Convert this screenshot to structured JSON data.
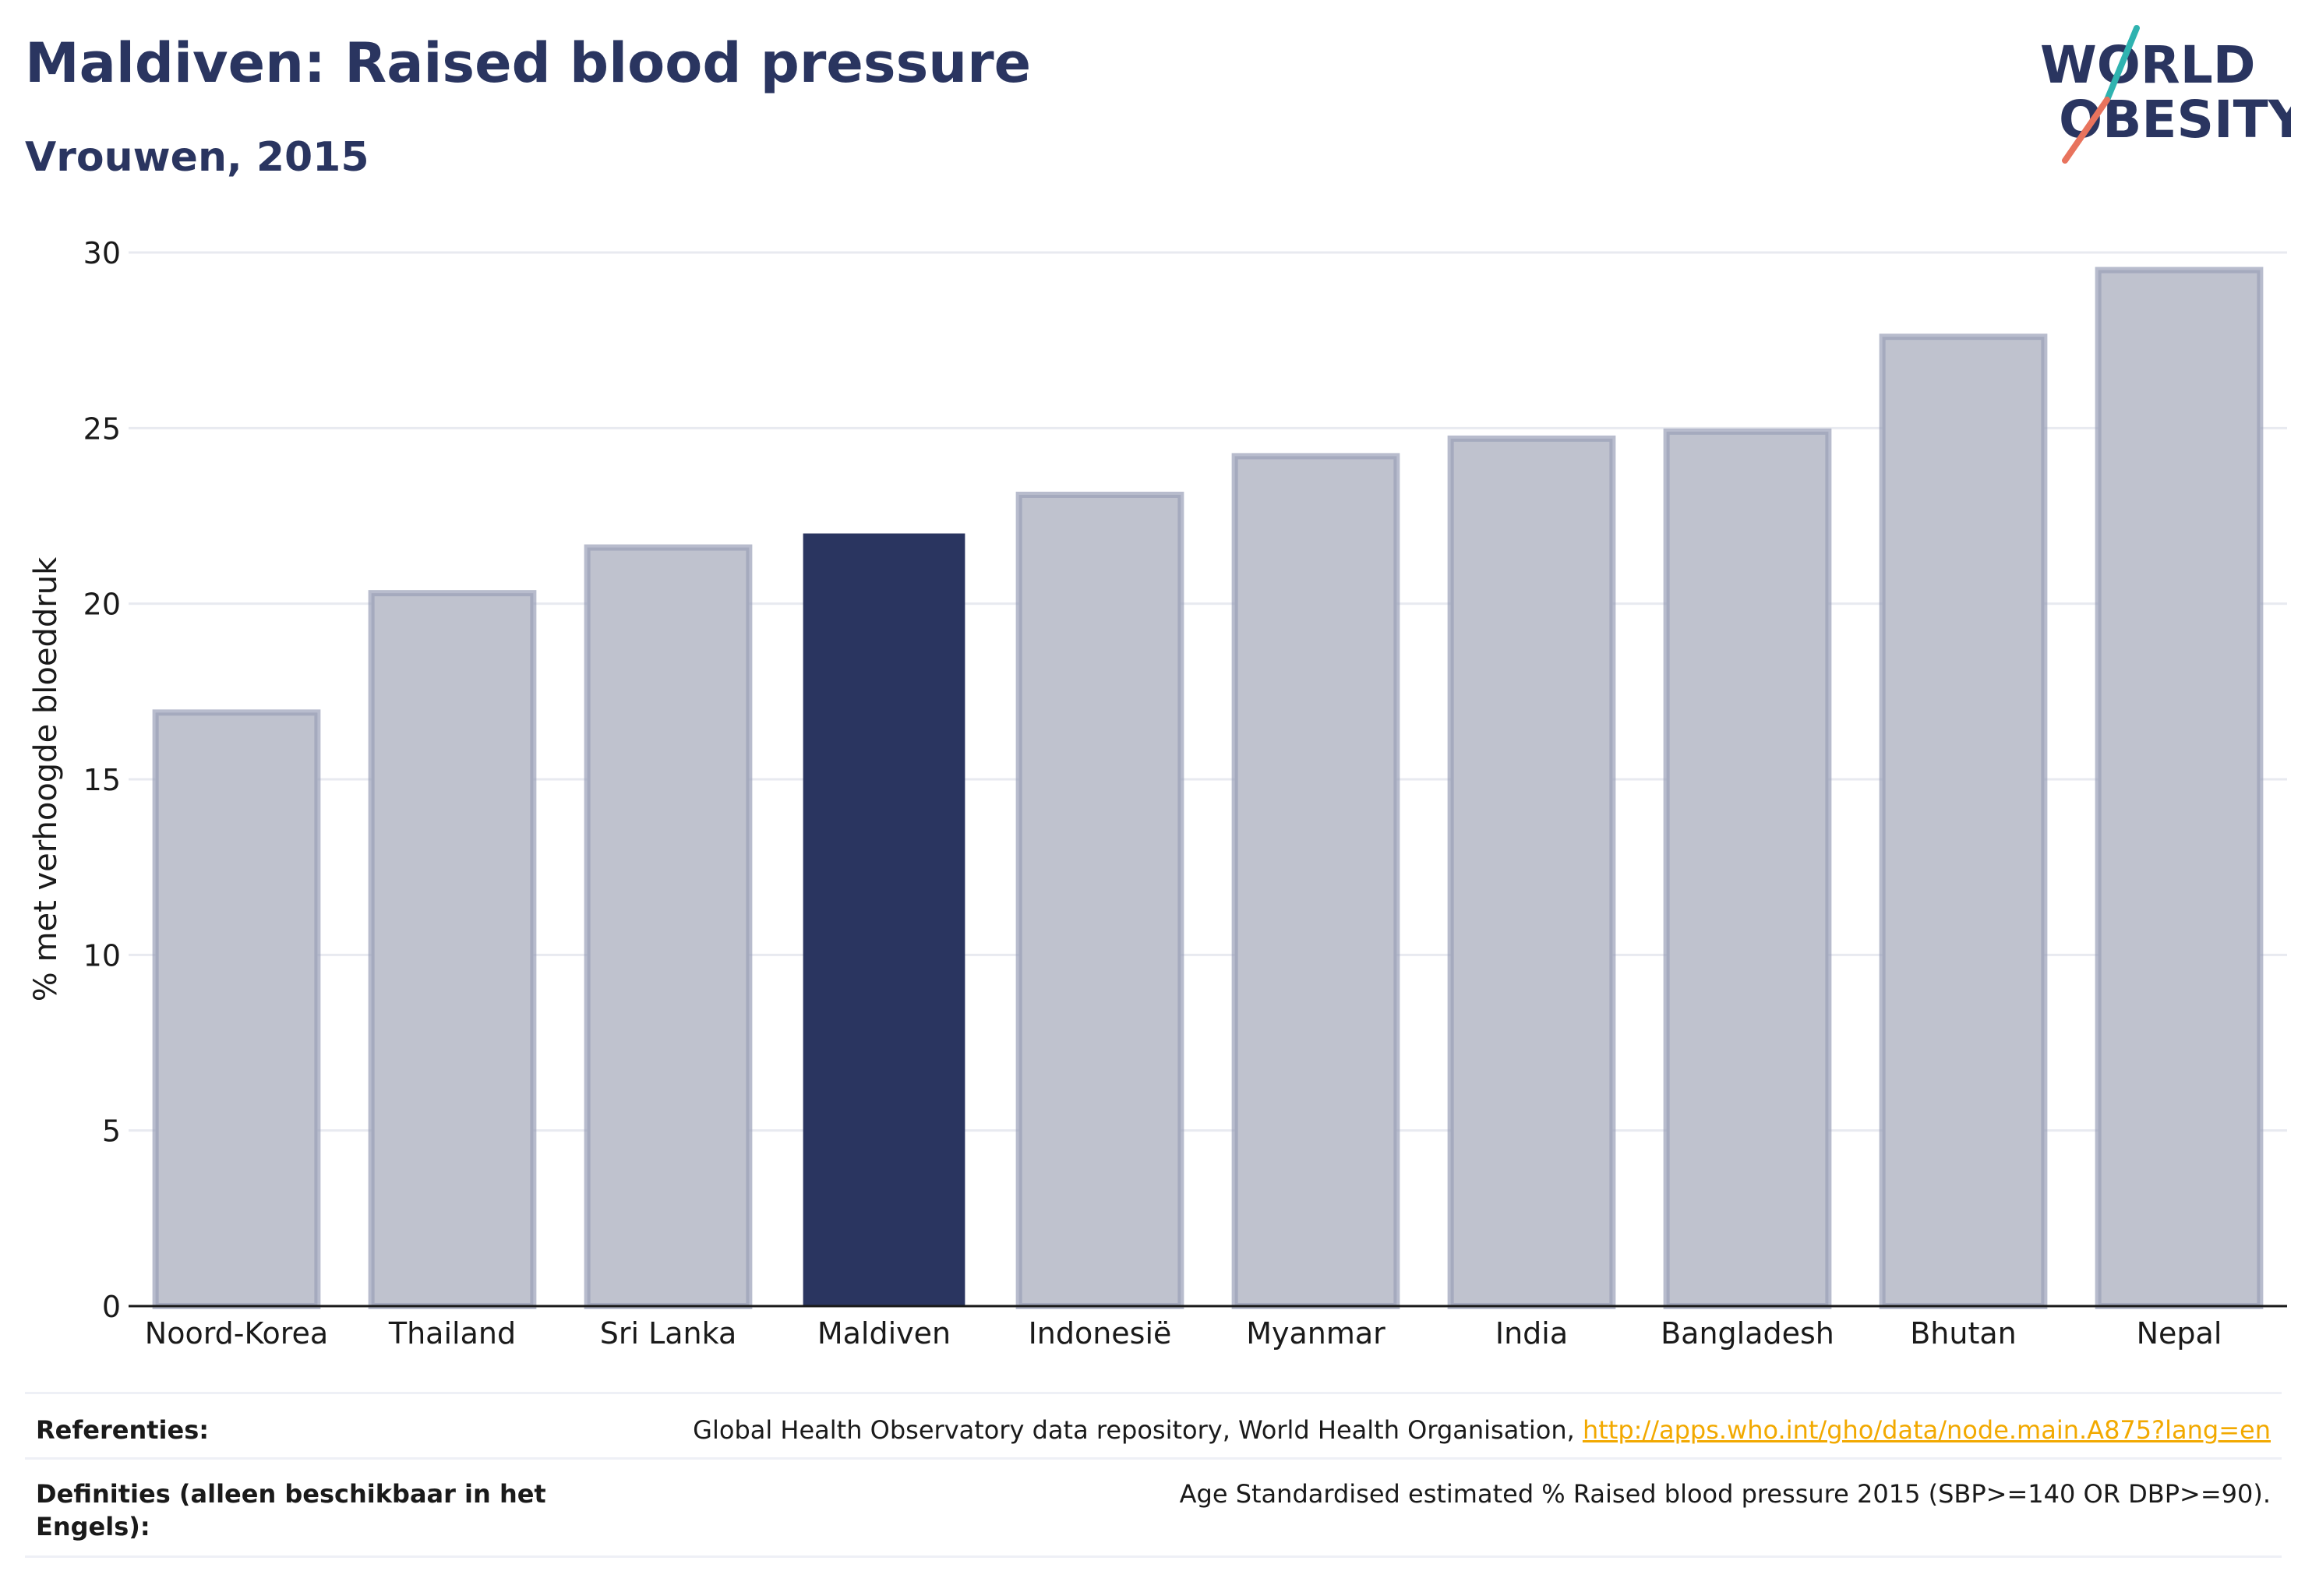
{
  "header": {
    "title": "Maldiven: Raised blood pressure",
    "subtitle": "Vrouwen, 2015"
  },
  "logo": {
    "line1": "WORLD",
    "line2": "OBESITY"
  },
  "colors": {
    "highlight": "#2a3560",
    "bar": "#bfc2ce",
    "bar_stroke": "#9aa0b8",
    "text": "#2a3560",
    "link": "#f2a900",
    "logo_slash_teal": "#2fb3b0",
    "logo_slash_coral": "#e8735d"
  },
  "chart_data": {
    "type": "bar",
    "categories": [
      "Noord-Korea",
      "Thailand",
      "Sri Lanka",
      "Maldiven",
      "Indonesië",
      "Myanmar",
      "India",
      "Bangladesh",
      "Bhutan",
      "Nepal"
    ],
    "values": [
      16.9,
      20.3,
      21.6,
      22.0,
      23.1,
      24.2,
      24.7,
      24.9,
      27.6,
      29.5
    ],
    "highlight": "Maldiven",
    "ylabel": "% met verhoogde bloeddruk",
    "xlabel": "",
    "ylim": [
      0,
      30
    ],
    "yticks": [
      0,
      5,
      10,
      15,
      20,
      25,
      30
    ],
    "grid": true
  },
  "footer": {
    "references_label": "Referenties:",
    "references_text": "Global Health Observatory data repository, World Health Organisation, ",
    "references_link": "http://apps.who.int/gho/data/node.main.A875?lang=en",
    "definitions_label_line1": "Definities (alleen beschikbaar in het",
    "definitions_label_line2": "Engels):",
    "definitions_text": "Age Standardised estimated % Raised blood pressure 2015 (SBP>=140 OR DBP>=90)."
  }
}
